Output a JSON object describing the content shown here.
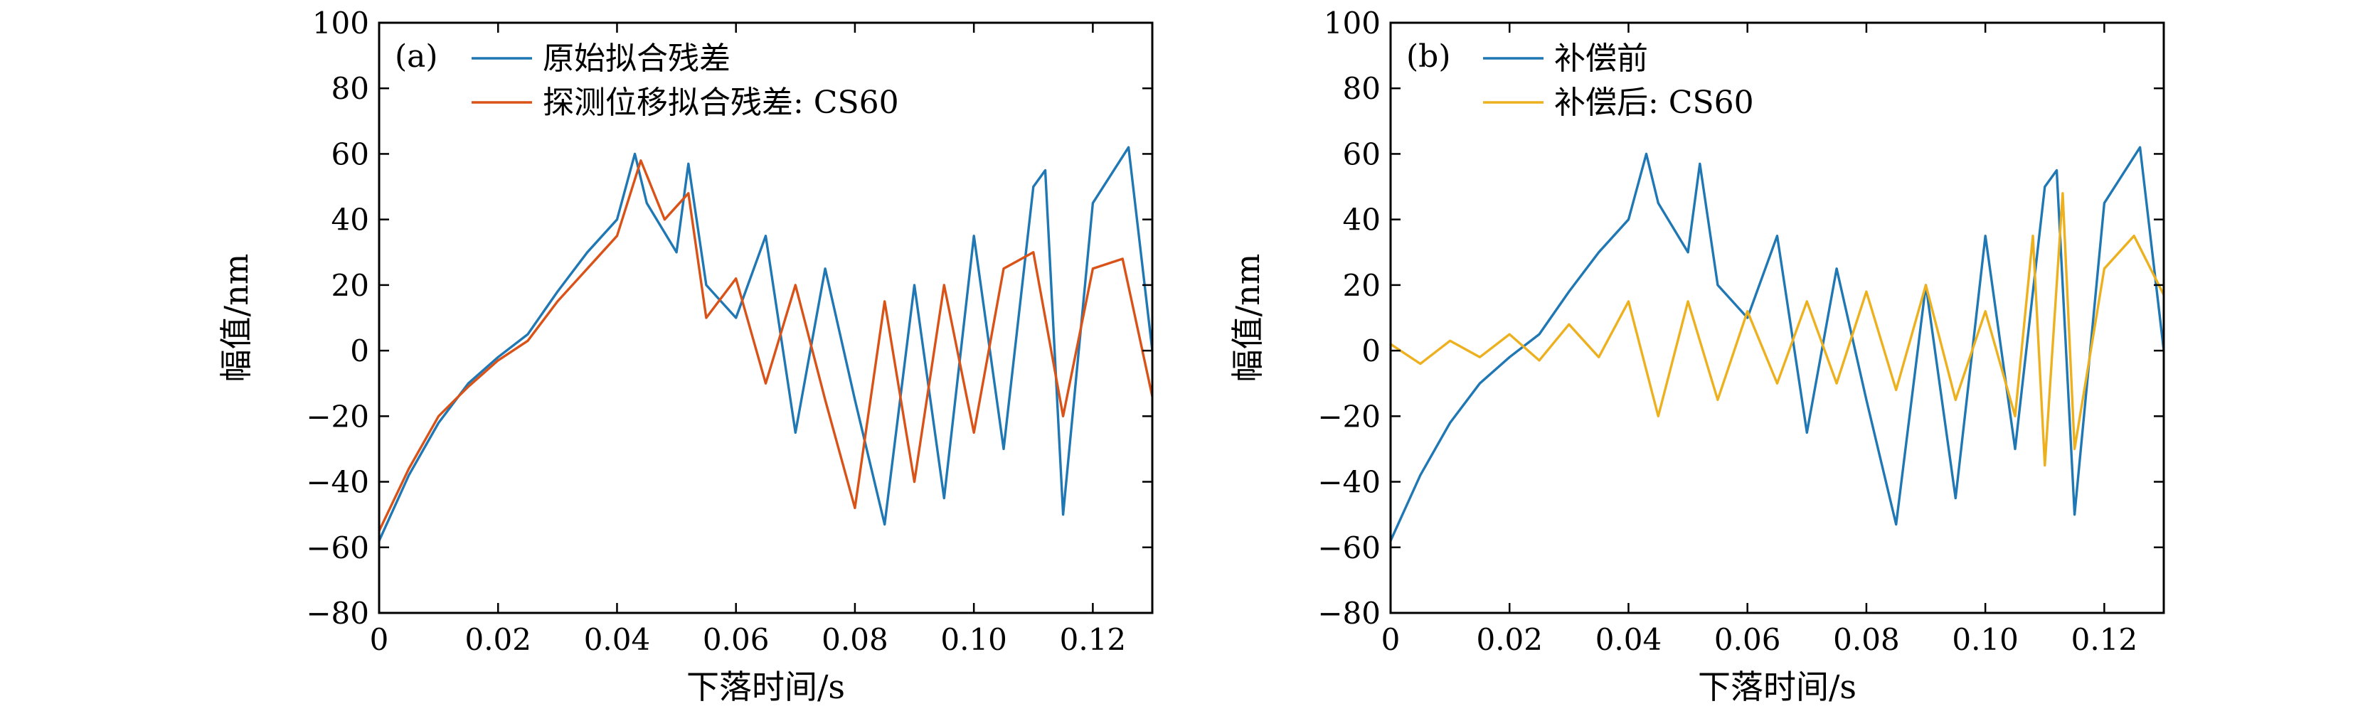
{
  "chart_data": [
    {
      "type": "line",
      "panel_label": "(a)",
      "xlabel": "下落时间/s",
      "ylabel": "幅值/nm",
      "xlim": [
        0,
        0.13
      ],
      "ylim": [
        -80,
        100
      ],
      "xticks": [
        0,
        0.02,
        0.04,
        0.06,
        0.08,
        0.1,
        0.12
      ],
      "xtick_labels": [
        "0",
        "0.02",
        "0.04",
        "0.06",
        "0.08",
        "0.10",
        "0.12"
      ],
      "yticks": [
        -80,
        -60,
        -40,
        -20,
        0,
        20,
        40,
        60,
        80,
        100
      ],
      "ytick_labels": [
        "−80",
        "−60",
        "−40",
        "−20",
        "0",
        "20",
        "40",
        "60",
        "80",
        "100"
      ],
      "legend_position": "top-left",
      "grid": false,
      "series": [
        {
          "name": "原始拟合残差",
          "color": "#1f77b4",
          "x": [
            0,
            0.005,
            0.01,
            0.015,
            0.02,
            0.025,
            0.03,
            0.035,
            0.04,
            0.043,
            0.045,
            0.05,
            0.052,
            0.055,
            0.06,
            0.065,
            0.07,
            0.075,
            0.08,
            0.085,
            0.09,
            0.095,
            0.1,
            0.105,
            0.11,
            0.112,
            0.115,
            0.12,
            0.126,
            0.13
          ],
          "y": [
            -58,
            -38,
            -22,
            -10,
            -2,
            5,
            18,
            30,
            40,
            60,
            45,
            30,
            57,
            20,
            10,
            35,
            -25,
            25,
            -15,
            -53,
            20,
            -45,
            35,
            -30,
            50,
            55,
            -50,
            45,
            62,
            0
          ]
        },
        {
          "name": "探测位移拟合残差: CS60",
          "color": "#d95319",
          "x": [
            0,
            0.005,
            0.01,
            0.015,
            0.02,
            0.025,
            0.03,
            0.035,
            0.04,
            0.044,
            0.048,
            0.052,
            0.055,
            0.06,
            0.065,
            0.07,
            0.075,
            0.08,
            0.085,
            0.09,
            0.095,
            0.1,
            0.105,
            0.11,
            0.115,
            0.12,
            0.125,
            0.13
          ],
          "y": [
            -55,
            -36,
            -20,
            -11,
            -3,
            3,
            15,
            25,
            35,
            58,
            40,
            48,
            10,
            22,
            -10,
            20,
            -15,
            -48,
            15,
            -40,
            20,
            -25,
            25,
            30,
            -20,
            25,
            28,
            -14
          ]
        }
      ]
    },
    {
      "type": "line",
      "panel_label": "(b)",
      "xlabel": "下落时间/s",
      "ylabel": "幅值/nm",
      "xlim": [
        0,
        0.13
      ],
      "ylim": [
        -80,
        100
      ],
      "xticks": [
        0,
        0.02,
        0.04,
        0.06,
        0.08,
        0.1,
        0.12
      ],
      "xtick_labels": [
        "0",
        "0.02",
        "0.04",
        "0.06",
        "0.08",
        "0.10",
        "0.12"
      ],
      "yticks": [
        -80,
        -60,
        -40,
        -20,
        0,
        20,
        40,
        60,
        80,
        100
      ],
      "ytick_labels": [
        "−80",
        "−60",
        "−40",
        "−20",
        "0",
        "20",
        "40",
        "60",
        "80",
        "100"
      ],
      "legend_position": "top-left",
      "grid": false,
      "series": [
        {
          "name": "补偿前",
          "color": "#1f77b4",
          "x": [
            0,
            0.005,
            0.01,
            0.015,
            0.02,
            0.025,
            0.03,
            0.035,
            0.04,
            0.043,
            0.045,
            0.05,
            0.052,
            0.055,
            0.06,
            0.065,
            0.07,
            0.075,
            0.08,
            0.085,
            0.09,
            0.095,
            0.1,
            0.105,
            0.11,
            0.112,
            0.115,
            0.12,
            0.126,
            0.13
          ],
          "y": [
            -58,
            -38,
            -22,
            -10,
            -2,
            5,
            18,
            30,
            40,
            60,
            45,
            30,
            57,
            20,
            10,
            35,
            -25,
            25,
            -15,
            -53,
            20,
            -45,
            35,
            -30,
            50,
            55,
            -50,
            45,
            62,
            0
          ]
        },
        {
          "name": "补偿后: CS60",
          "color": "#edb120",
          "x": [
            0,
            0.005,
            0.01,
            0.015,
            0.02,
            0.025,
            0.03,
            0.035,
            0.04,
            0.045,
            0.05,
            0.055,
            0.06,
            0.065,
            0.07,
            0.075,
            0.08,
            0.085,
            0.09,
            0.095,
            0.1,
            0.105,
            0.108,
            0.11,
            0.113,
            0.115,
            0.12,
            0.125,
            0.13
          ],
          "y": [
            2,
            -4,
            3,
            -2,
            5,
            -3,
            8,
            -2,
            15,
            -20,
            15,
            -15,
            12,
            -10,
            15,
            -10,
            18,
            -12,
            20,
            -15,
            12,
            -20,
            35,
            -35,
            48,
            -30,
            25,
            35,
            17
          ]
        }
      ]
    }
  ]
}
